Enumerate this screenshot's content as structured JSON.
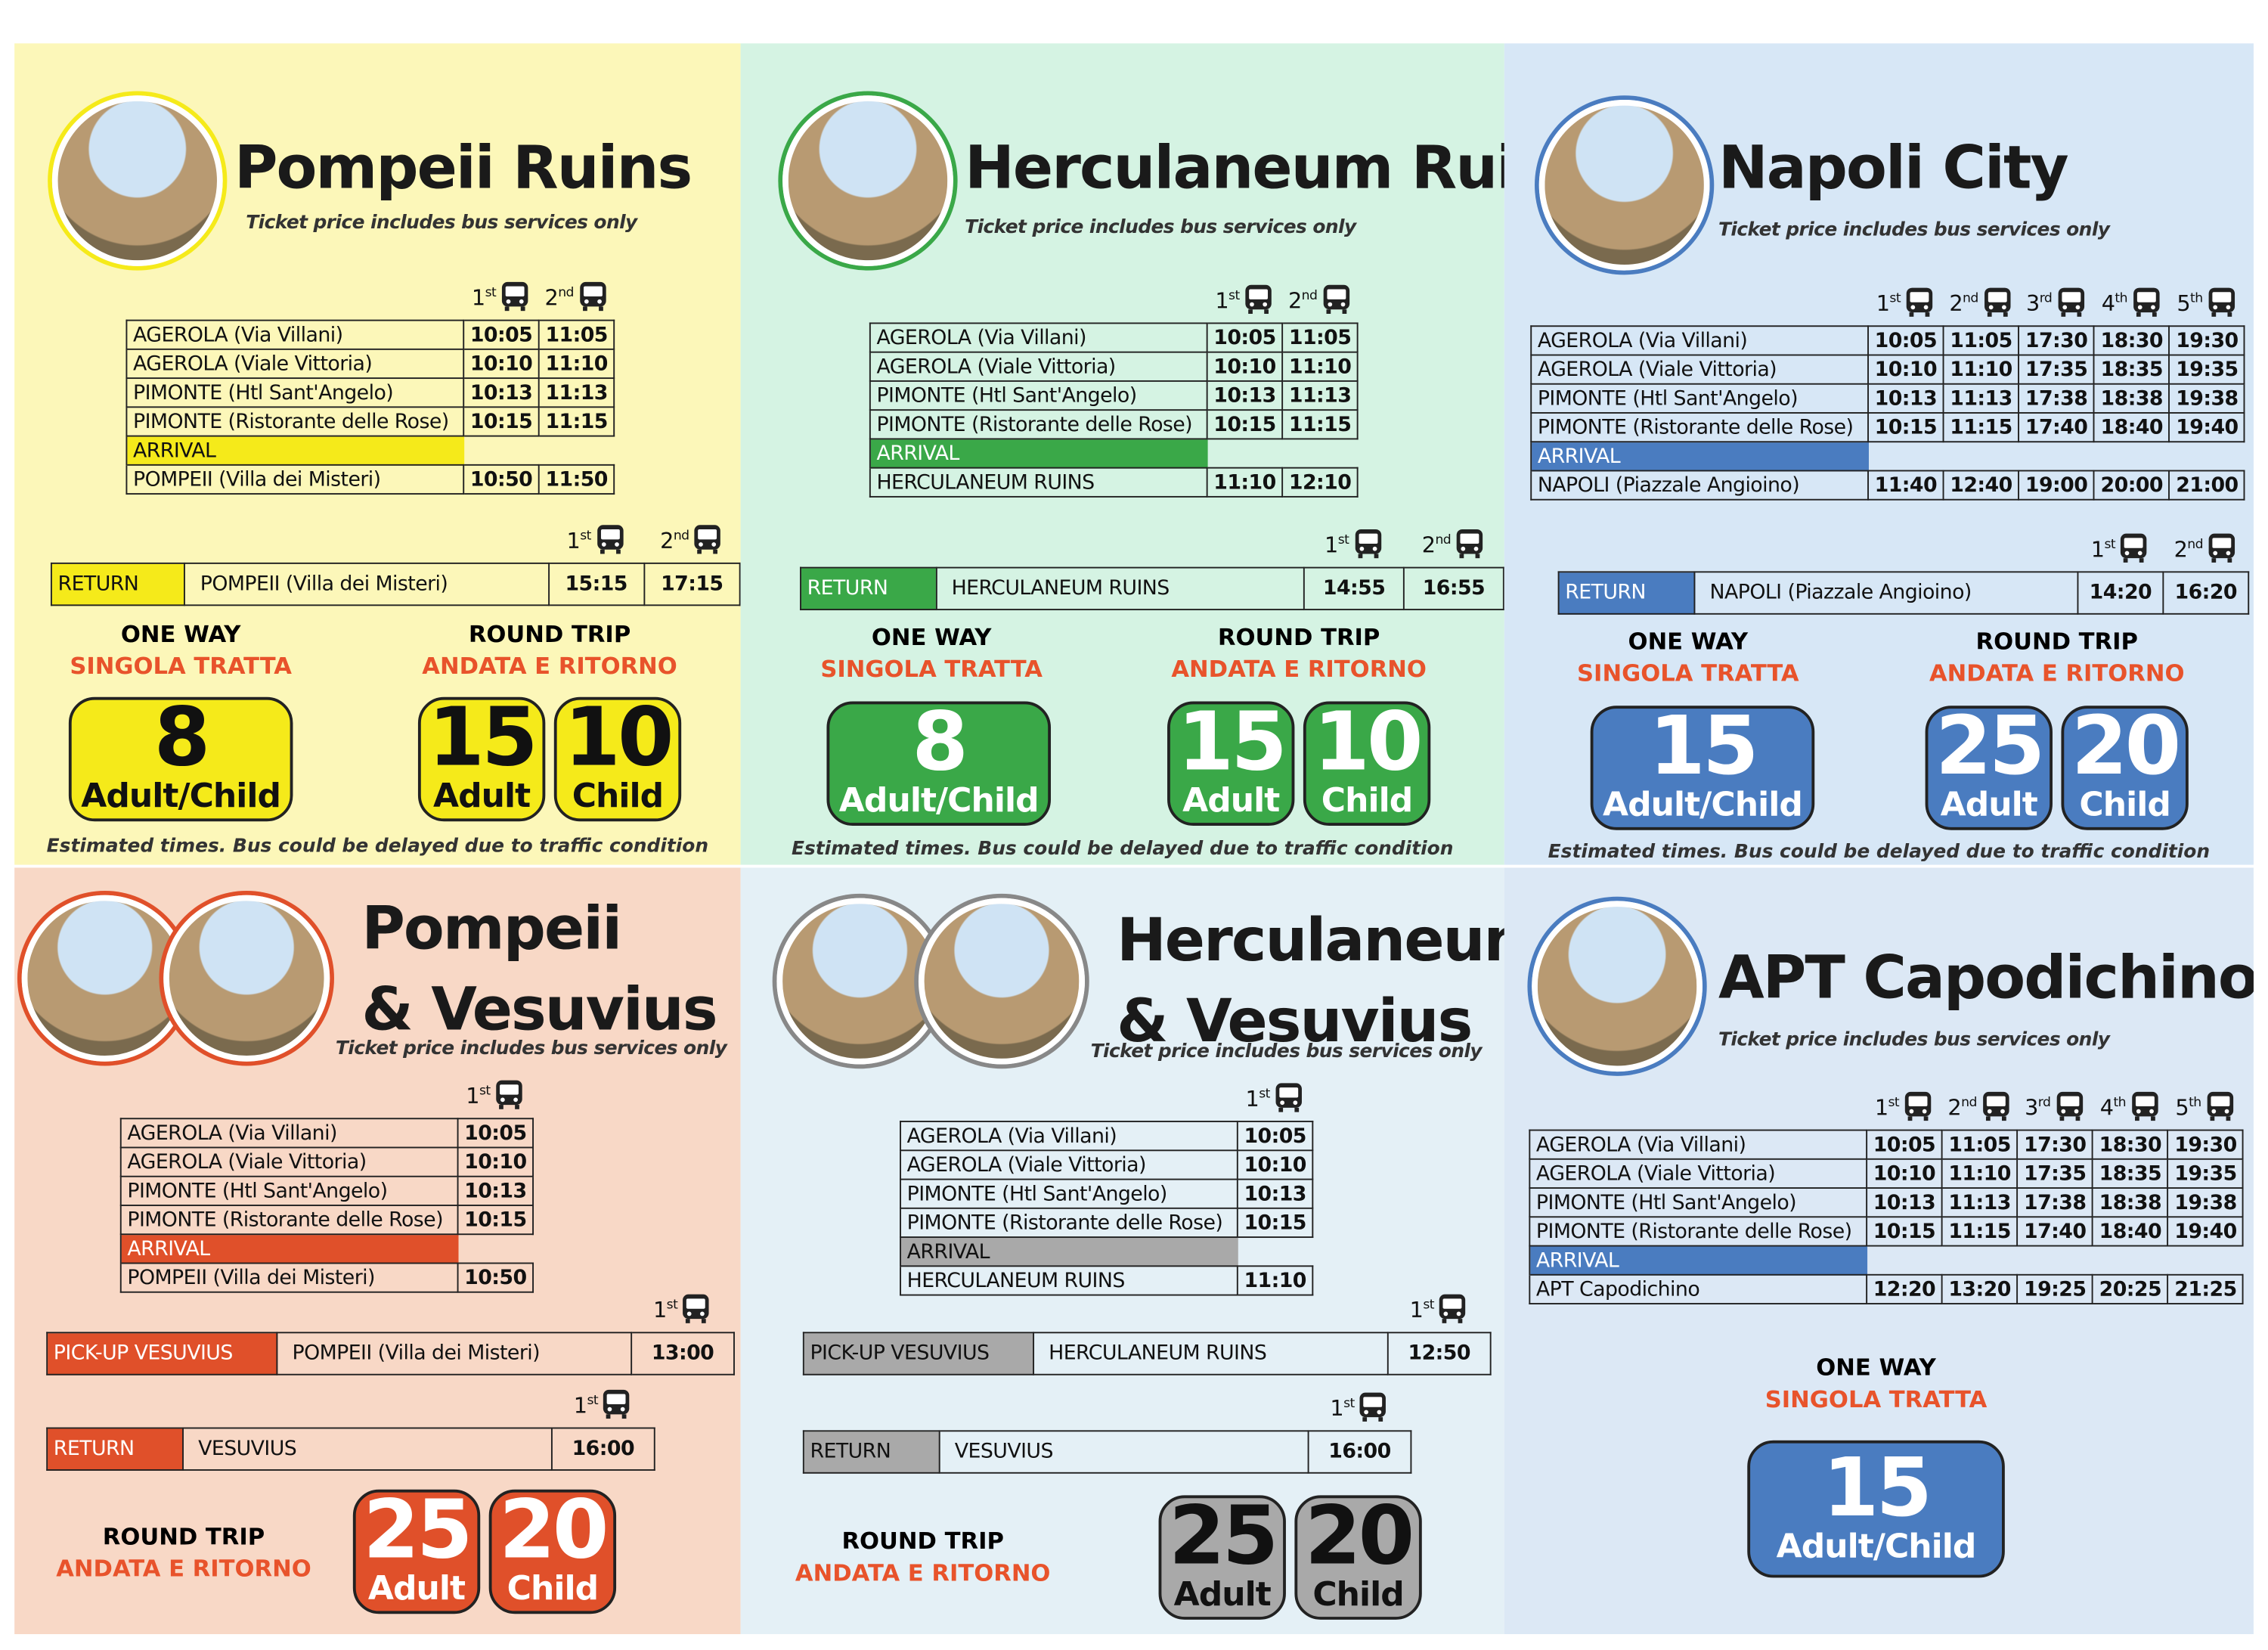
{
  "panels": [
    {
      "title": [
        "Pompeii Ruins"
      ],
      "subtitle": "Ticket price includes bus services only",
      "theme": {
        "background": "#fcf7b9",
        "accent": "#f5ea1a",
        "text": "#111111"
      },
      "schedule": {
        "buses": [
          {
            "number": "1",
            "suffix": "st"
          },
          {
            "number": "2",
            "suffix": "nd"
          }
        ],
        "rows": [
          [
            "AGEROLA (Via Villani)",
            "10:05",
            "11:05"
          ],
          [
            "AGEROLA (Viale Vittoria)",
            "10:10",
            "11:10"
          ],
          [
            "PIMONTE (Htl Sant'Angelo)",
            "10:13",
            "11:13"
          ],
          [
            "PIMONTE (Ristorante delle Rose)",
            "10:15",
            "11:15"
          ]
        ],
        "arrival": "ARRIVAL",
        "destination": [
          "POMPEII (Villa dei Misteri)",
          "10:50",
          "11:50"
        ]
      },
      "transfers": [
        {
          "buses": [
            {
              "number": "1",
              "suffix": "st"
            },
            {
              "number": "2",
              "suffix": "nd"
            }
          ],
          "label": "RETURN",
          "place": "POMPEII (Villa dei Misteri)",
          "times": [
            "15:15",
            "17:15"
          ]
        }
      ],
      "fares": [
        {
          "heading": "ONE WAY",
          "subheading": "SINGOLA TRATTA",
          "prices": [
            {
              "amount": "8",
              "label": "Adult/Child"
            }
          ]
        },
        {
          "heading": "ROUND TRIP",
          "subheading": "ANDATA E RITORNO",
          "prices": [
            {
              "amount": "15",
              "label": "Adult"
            },
            {
              "amount": "10",
              "label": "Child"
            }
          ]
        }
      ],
      "note": "Estimated times. Bus could be delayed due to traffic condition"
    },
    {
      "title": [
        "Herculaneum Ruins"
      ],
      "subtitle": "Ticket price includes bus services only",
      "theme": {
        "background": "#d5f3e3",
        "accent": "#3aa848",
        "text": "#ffffff"
      },
      "schedule": {
        "buses": [
          {
            "number": "1",
            "suffix": "st"
          },
          {
            "number": "2",
            "suffix": "nd"
          }
        ],
        "rows": [
          [
            "AGEROLA (Via Villani)",
            "10:05",
            "11:05"
          ],
          [
            "AGEROLA (Viale Vittoria)",
            "10:10",
            "11:10"
          ],
          [
            "PIMONTE (Htl Sant'Angelo)",
            "10:13",
            "11:13"
          ],
          [
            "PIMONTE (Ristorante delle Rose)",
            "10:15",
            "11:15"
          ]
        ],
        "arrival": "ARRIVAL",
        "destination": [
          "HERCULANEUM RUINS",
          "11:10",
          "12:10"
        ]
      },
      "transfers": [
        {
          "buses": [
            {
              "number": "1",
              "suffix": "st"
            },
            {
              "number": "2",
              "suffix": "nd"
            }
          ],
          "label": "RETURN",
          "place": "HERCULANEUM RUINS",
          "times": [
            "14:55",
            "16:55"
          ]
        }
      ],
      "fares": [
        {
          "heading": "ONE WAY",
          "subheading": "SINGOLA TRATTA",
          "prices": [
            {
              "amount": "8",
              "label": "Adult/Child"
            }
          ]
        },
        {
          "heading": "ROUND TRIP",
          "subheading": "ANDATA E RITORNO",
          "prices": [
            {
              "amount": "15",
              "label": "Adult"
            },
            {
              "amount": "10",
              "label": "Child"
            }
          ]
        }
      ],
      "note": "Estimated times. Bus could be delayed due to traffic condition"
    },
    {
      "title": [
        "Napoli City"
      ],
      "subtitle": "Ticket price includes bus services only",
      "theme": {
        "background": "#d7e7f6",
        "accent": "#4a7cc0",
        "text": "#ffffff"
      },
      "schedule": {
        "buses": [
          {
            "number": "1",
            "suffix": "st"
          },
          {
            "number": "2",
            "suffix": "nd"
          },
          {
            "number": "3",
            "suffix": "rd"
          },
          {
            "number": "4",
            "suffix": "th"
          },
          {
            "number": "5",
            "suffix": "th"
          }
        ],
        "rows": [
          [
            "AGEROLA (Via Villani)",
            "10:05",
            "11:05",
            "17:30",
            "18:30",
            "19:30"
          ],
          [
            "AGEROLA (Viale Vittoria)",
            "10:10",
            "11:10",
            "17:35",
            "18:35",
            "19:35"
          ],
          [
            "PIMONTE (Htl Sant'Angelo)",
            "10:13",
            "11:13",
            "17:38",
            "18:38",
            "19:38"
          ],
          [
            "PIMONTE (Ristorante delle Rose)",
            "10:15",
            "11:15",
            "17:40",
            "18:40",
            "19:40"
          ]
        ],
        "arrival": "ARRIVAL",
        "destination": [
          "NAPOLI (Piazzale Angioino)",
          "11:40",
          "12:40",
          "19:00",
          "20:00",
          "21:00"
        ]
      },
      "transfers": [
        {
          "buses": [
            {
              "number": "1",
              "suffix": "st"
            },
            {
              "number": "2",
              "suffix": "nd"
            }
          ],
          "label": "RETURN",
          "place": "NAPOLI (Piazzale Angioino)",
          "times": [
            "14:20",
            "16:20"
          ]
        }
      ],
      "fares": [
        {
          "heading": "ONE WAY",
          "subheading": "SINGOLA TRATTA",
          "prices": [
            {
              "amount": "15",
              "label": "Adult/Child"
            }
          ]
        },
        {
          "heading": "ROUND TRIP",
          "subheading": "ANDATA E RITORNO",
          "prices": [
            {
              "amount": "25",
              "label": "Adult"
            },
            {
              "amount": "20",
              "label": "Child"
            }
          ]
        }
      ],
      "note": "Estimated times. Bus could be delayed due to traffic condition"
    },
    {
      "title": [
        "Pompeii",
        "& Vesuvius"
      ],
      "subtitle": "Ticket price includes bus services only",
      "theme": {
        "background": "#f8d8c6",
        "accent": "#e0502a",
        "text": "#ffffff"
      },
      "schedule": {
        "buses": [
          {
            "number": "1",
            "suffix": "st"
          }
        ],
        "rows": [
          [
            "AGEROLA (Via Villani)",
            "10:05"
          ],
          [
            "AGEROLA (Viale Vittoria)",
            "10:10"
          ],
          [
            "PIMONTE (Htl Sant'Angelo)",
            "10:13"
          ],
          [
            "PIMONTE (Ristorante delle Rose)",
            "10:15"
          ]
        ],
        "arrival": "ARRIVAL",
        "destination": [
          "POMPEII (Villa dei Misteri)",
          "10:50"
        ]
      },
      "transfers": [
        {
          "buses": [
            {
              "number": "1",
              "suffix": "st"
            }
          ],
          "label": "PICK-UP VESUVIUS",
          "place": "POMPEII (Villa dei Misteri)",
          "times": [
            "13:00"
          ]
        },
        {
          "buses": [
            {
              "number": "1",
              "suffix": "st"
            }
          ],
          "label": "RETURN",
          "place": "VESUVIUS",
          "times": [
            "16:00"
          ]
        }
      ],
      "fares": [
        {
          "heading": "ROUND TRIP",
          "subheading": "ANDATA E RITORNO",
          "prices": [
            {
              "amount": "25",
              "label": "Adult"
            },
            {
              "amount": "20",
              "label": "Child"
            }
          ]
        }
      ]
    },
    {
      "title": [
        "Herculaneum",
        "& Vesuvius"
      ],
      "subtitle": "Ticket price includes bus services only",
      "theme": {
        "background": "#e4f0f6",
        "accent": "#a9a9a9",
        "text": "#111111"
      },
      "schedule": {
        "buses": [
          {
            "number": "1",
            "suffix": "st"
          }
        ],
        "rows": [
          [
            "AGEROLA (Via Villani)",
            "10:05"
          ],
          [
            "AGEROLA (Viale Vittoria)",
            "10:10"
          ],
          [
            "PIMONTE (Htl Sant'Angelo)",
            "10:13"
          ],
          [
            "PIMONTE (Ristorante delle Rose)",
            "10:15"
          ]
        ],
        "arrival": "ARRIVAL",
        "destination": [
          "HERCULANEUM RUINS",
          "11:10"
        ]
      },
      "transfers": [
        {
          "buses": [
            {
              "number": "1",
              "suffix": "st"
            }
          ],
          "label": "PICK-UP VESUVIUS",
          "place": "HERCULANEUM RUINS",
          "times": [
            "12:50"
          ]
        },
        {
          "buses": [
            {
              "number": "1",
              "suffix": "st"
            }
          ],
          "label": "RETURN",
          "place": "VESUVIUS",
          "times": [
            "16:00"
          ]
        }
      ],
      "fares": [
        {
          "heading": "ROUND TRIP",
          "subheading": "ANDATA E RITORNO",
          "prices": [
            {
              "amount": "25",
              "label": "Adult"
            },
            {
              "amount": "20",
              "label": "Child"
            }
          ]
        }
      ]
    },
    {
      "title": [
        "APT Capodichino"
      ],
      "subtitle": "Ticket price includes bus services only",
      "theme": {
        "background": "#dce8f5",
        "accent": "#4a7cc0",
        "text": "#ffffff"
      },
      "schedule": {
        "buses": [
          {
            "number": "1",
            "suffix": "st"
          },
          {
            "number": "2",
            "suffix": "nd"
          },
          {
            "number": "3",
            "suffix": "rd"
          },
          {
            "number": "4",
            "suffix": "th"
          },
          {
            "number": "5",
            "suffix": "th"
          }
        ],
        "rows": [
          [
            "AGEROLA (Via Villani)",
            "10:05",
            "11:05",
            "17:30",
            "18:30",
            "19:30"
          ],
          [
            "AGEROLA (Viale Vittoria)",
            "10:10",
            "11:10",
            "17:35",
            "18:35",
            "19:35"
          ],
          [
            "PIMONTE (Htl Sant'Angelo)",
            "10:13",
            "11:13",
            "17:38",
            "18:38",
            "19:38"
          ],
          [
            "PIMONTE (Ristorante delle Rose)",
            "10:15",
            "11:15",
            "17:40",
            "18:40",
            "19:40"
          ]
        ],
        "arrival": "ARRIVAL",
        "destination": [
          "APT Capodichino",
          "12:20",
          "13:20",
          "19:25",
          "20:25",
          "21:25"
        ]
      },
      "transfers": [],
      "fares": [
        {
          "heading": "ONE WAY",
          "subheading": "SINGOLA TRATTA",
          "prices": [
            {
              "amount": "15",
              "label": "Adult/Child"
            }
          ]
        }
      ]
    }
  ]
}
